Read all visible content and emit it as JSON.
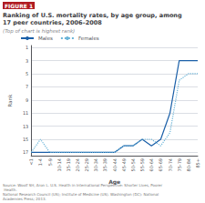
{
  "chart_data": {
    "type": "line",
    "title": "Ranking of U.S. mortality rates, by age group, among\n17 peer countries, 2006–2008",
    "subtitle": "(Top of chart is highest rank)",
    "xlabel": "Age",
    "ylabel": "Rank",
    "categories": [
      "<1",
      "1-4",
      "5-9",
      "10-14",
      "15-19",
      "20-24",
      "25-29",
      "30-34",
      "35-39",
      "40-44",
      "45-49",
      "50-54",
      "55-59",
      "60-64",
      "65-69",
      "70-74",
      "75-79",
      "80-84",
      "85+"
    ],
    "series": [
      {
        "name": "Males",
        "color": "#1a5fa8",
        "line_style": "solid",
        "values": [
          17,
          17,
          17,
          17,
          17,
          17,
          17,
          17,
          17,
          17,
          16,
          16,
          15,
          16,
          15,
          11,
          3,
          3,
          3
        ]
      },
      {
        "name": "Females",
        "color": "#6ab4d8",
        "line_style": "dotted",
        "values": [
          17,
          15,
          17,
          17,
          17,
          17,
          17,
          17,
          17,
          17,
          16,
          16,
          15,
          15,
          16,
          14,
          6,
          5,
          5
        ]
      }
    ],
    "ylim": [
      17.5,
      0.7
    ],
    "yticks": [
      1,
      3,
      5,
      7,
      9,
      11,
      13,
      15,
      17
    ],
    "grid": true,
    "legend": "upper left",
    "annotations": [
      {
        "text": "FIGURE 1",
        "color": "#b01c22"
      },
      {
        "text": "Source: Woolf SH, Aron L. U.S. Health in International Perspective: Shorter Lives, Poorer Health.\nNational Research Council (US); Institute of Medicine (US). Washington (DC): National Academies Press; 2013."
      }
    ]
  }
}
